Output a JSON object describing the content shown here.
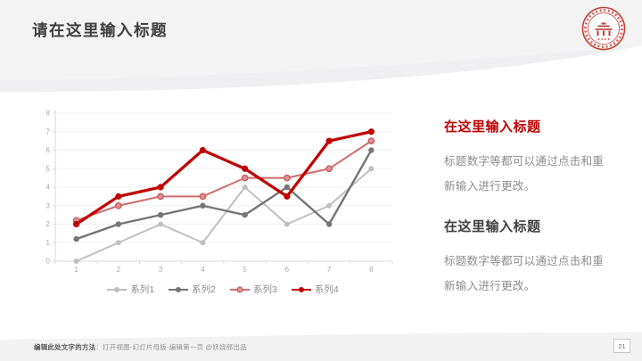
{
  "slide": {
    "title": "请在这里输入标题",
    "page_number": "21",
    "footer": {
      "bold": "编辑此处文字的方法",
      "text": "：打开视图-幻灯片母版-编辑第一页 @妖娆郎出品"
    },
    "logo": {
      "name": "university-red-seal",
      "color": "#c23b31"
    },
    "theme": {
      "accent_red": "#c00000",
      "header_gray": "#f3f3f4",
      "footer_gray": "#f2f2f3"
    }
  },
  "chart_data": {
    "type": "line",
    "title": "",
    "xlabel": "",
    "ylabel": "",
    "x": [
      1,
      2,
      3,
      4,
      5,
      6,
      7,
      8
    ],
    "ylim": [
      0,
      8
    ],
    "yticks": [
      0,
      1,
      2,
      3,
      4,
      5,
      6,
      7,
      8
    ],
    "grid": true,
    "legend_position": "bottom",
    "series": [
      {
        "name": "系列1",
        "color": "#bfbfbf",
        "stroke_width": 2,
        "marker_radius": 3,
        "values": [
          0,
          1,
          2,
          1,
          4,
          2,
          3,
          5
        ]
      },
      {
        "name": "系列2",
        "color": "#757575",
        "stroke_width": 2.4,
        "marker_radius": 3.2,
        "values": [
          1.2,
          2,
          2.5,
          3,
          2.5,
          4,
          2,
          6
        ]
      },
      {
        "name": "系列3",
        "color": "#d06c6c",
        "stroke_width": 2,
        "marker_radius": 3.2,
        "marker_fill": "#dc9292",
        "marker_stroke": "#c95f5f",
        "values": [
          2.2,
          3,
          3.5,
          3.5,
          4.5,
          4.5,
          5,
          6.5
        ]
      },
      {
        "name": "系列4",
        "color": "#c00000",
        "stroke_width": 3.2,
        "marker_radius": 3.6,
        "values": [
          2,
          3.5,
          4,
          6,
          5,
          3.5,
          6.5,
          7
        ]
      }
    ]
  },
  "right_panel": {
    "sections": [
      {
        "heading": "在这里输入标题",
        "heading_color": "#c00000",
        "body": "标题数字等都可以通过点击和重新输入进行更改。"
      },
      {
        "heading": "在这里输入标题",
        "heading_color": "#404040",
        "body": "标题数字等都可以通过点击和重新输入进行更改。"
      }
    ]
  }
}
